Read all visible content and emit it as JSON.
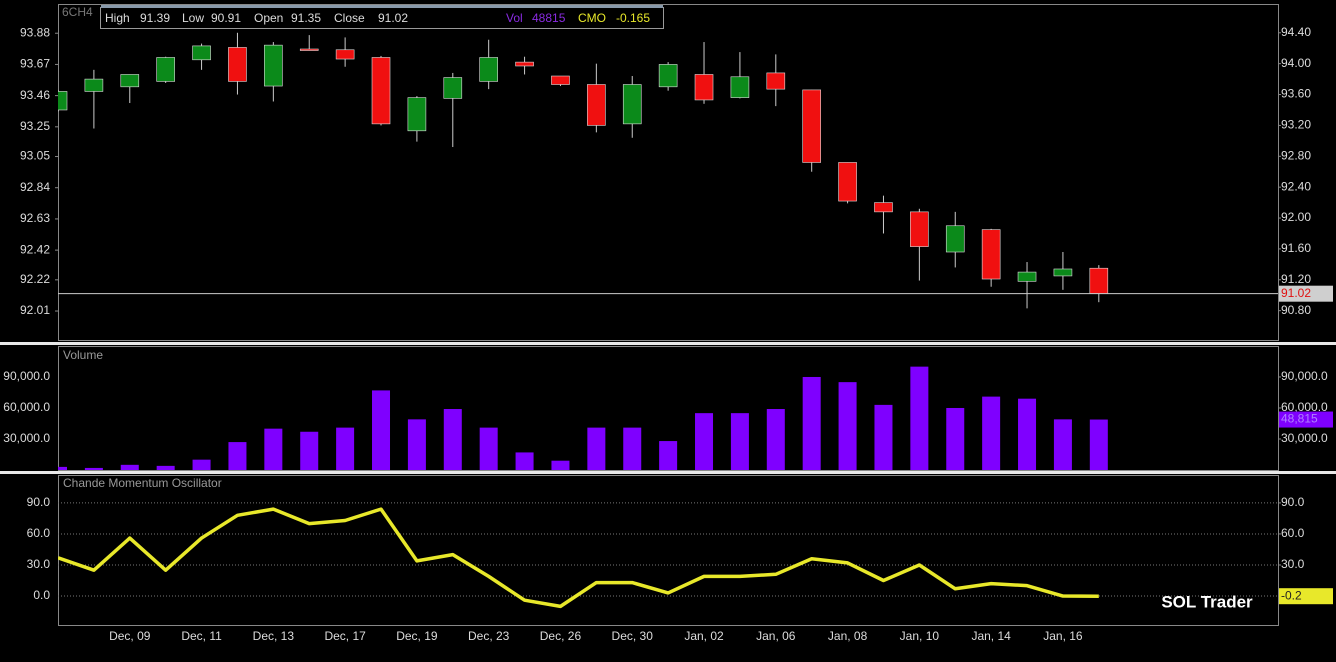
{
  "chart_data": [
    {
      "type": "candlestick",
      "title": "6CH4",
      "header": {
        "high": "High",
        "low": "Low",
        "open": "Open",
        "close": "Close",
        "vol": "Vol",
        "cmo": "CMO"
      },
      "open": [
        93.4,
        93.64,
        93.7,
        93.77,
        94.05,
        94.21,
        93.71,
        94.19,
        94.18,
        94.08,
        93.13,
        93.55,
        93.77,
        94.02,
        93.84,
        93.73,
        93.22,
        93.7,
        93.86,
        93.56,
        93.88,
        93.66,
        92.72,
        92.2,
        92.08,
        91.56,
        91.85,
        91.18,
        91.25,
        91.35
      ],
      "high": [
        93.66,
        93.92,
        93.86,
        94.09,
        94.26,
        94.4,
        94.28,
        94.37,
        94.34,
        94.1,
        93.58,
        93.88,
        94.31,
        94.09,
        93.84,
        94.0,
        93.84,
        94.02,
        94.28,
        94.15,
        94.12,
        93.66,
        92.72,
        92.29,
        92.12,
        92.08,
        91.86,
        91.43,
        91.56,
        91.39
      ],
      "low": [
        93.38,
        93.16,
        93.49,
        93.75,
        93.92,
        93.6,
        93.51,
        94.17,
        93.96,
        93.2,
        92.99,
        92.92,
        93.67,
        93.86,
        93.71,
        93.11,
        93.04,
        93.65,
        93.48,
        93.55,
        93.45,
        92.6,
        92.19,
        91.8,
        91.19,
        91.36,
        91.11,
        90.83,
        91.07,
        90.91
      ],
      "close": [
        93.64,
        93.8,
        93.86,
        94.08,
        94.23,
        93.77,
        94.24,
        94.17,
        94.06,
        93.22,
        93.56,
        93.82,
        94.08,
        93.97,
        93.73,
        93.2,
        93.73,
        93.99,
        93.53,
        93.83,
        93.67,
        92.72,
        92.22,
        92.08,
        91.63,
        91.9,
        91.21,
        91.3,
        91.34,
        91.02
      ],
      "up_color": "#0b8a1a",
      "down_color": "#f01010",
      "ylim": [
        90.42,
        94.76
      ],
      "yticks": [
        {
          "value": 94.4,
          "label": "94.40"
        },
        {
          "value": 94.0,
          "label": "94.00"
        },
        {
          "value": 93.6,
          "label": "93.60"
        },
        {
          "value": 93.2,
          "label": "93.20"
        },
        {
          "value": 92.8,
          "label": "92.80"
        },
        {
          "value": 92.4,
          "label": "92.40"
        },
        {
          "value": 92.0,
          "label": "92.00"
        },
        {
          "value": 91.6,
          "label": "91.60"
        },
        {
          "value": 91.2,
          "label": "91.20"
        },
        {
          "value": 90.8,
          "label": "90.80"
        }
      ],
      "y2lim": [
        91.815,
        94.07
      ],
      "y2ticks": [
        93.88,
        93.67,
        93.46,
        93.25,
        93.05,
        92.84,
        92.63,
        92.42,
        92.22,
        92.01
      ],
      "price_line": true
    },
    {
      "type": "bar",
      "title": "Volume",
      "color": "#7f00ff",
      "values": [
        3000,
        2000,
        5000,
        4000,
        10000,
        27000,
        40000,
        37000,
        41000,
        77000,
        49000,
        59000,
        41000,
        17000,
        9000,
        41000,
        41000,
        28000,
        55000,
        55000,
        59000,
        90000,
        85000,
        63000,
        100000,
        60000,
        71000,
        69000,
        49000,
        48815
      ],
      "value_labels": [
        null,
        null,
        null,
        null,
        null,
        null,
        null,
        null,
        null,
        null,
        null,
        null,
        null,
        null,
        null,
        null,
        null,
        null,
        null,
        null,
        null,
        null,
        null,
        null,
        null,
        null,
        null,
        null,
        null,
        "48,815"
      ],
      "ylim": [
        0,
        119000
      ],
      "yticks": [
        {
          "value": 90000,
          "label": "90,000.0"
        },
        {
          "value": 60000,
          "label": "60,000.0"
        },
        {
          "value": 30000,
          "label": "30,000.0"
        }
      ]
    },
    {
      "type": "line",
      "title": "Chande Momentum Oscillator",
      "color": "#e8e82a",
      "categories": [
        null,
        null,
        "Dec, 09",
        null,
        "Dec, 11",
        null,
        "Dec, 13",
        null,
        "Dec, 17",
        null,
        "Dec, 19",
        null,
        "Dec, 23",
        null,
        "Dec, 26",
        null,
        "Dec, 30",
        null,
        "Jan, 02",
        null,
        "Jan, 06",
        null,
        "Jan, 08",
        null,
        "Jan, 10",
        null,
        "Jan, 14",
        null,
        "Jan, 16",
        null
      ],
      "values": [
        37,
        25,
        56,
        25,
        56,
        78,
        84,
        70,
        73,
        84,
        34,
        40,
        19,
        -4,
        -10,
        13,
        13,
        3,
        19,
        19,
        21,
        36,
        32,
        15,
        30,
        7,
        12,
        10,
        0,
        -0.165
      ],
      "value_labels": [
        null,
        null,
        null,
        null,
        null,
        null,
        null,
        null,
        null,
        null,
        null,
        null,
        null,
        null,
        null,
        null,
        null,
        null,
        null,
        null,
        null,
        null,
        null,
        null,
        null,
        null,
        null,
        null,
        null,
        "-0.2"
      ],
      "ylim": [
        -28,
        116
      ],
      "yticks": [
        {
          "value": 90,
          "label": "90.0"
        },
        {
          "value": 60,
          "label": "60.0"
        },
        {
          "value": 30,
          "label": "30.0"
        },
        {
          "value": 0,
          "label": "0.0"
        }
      ],
      "grid": true,
      "watermark": "SOL Trader"
    }
  ]
}
